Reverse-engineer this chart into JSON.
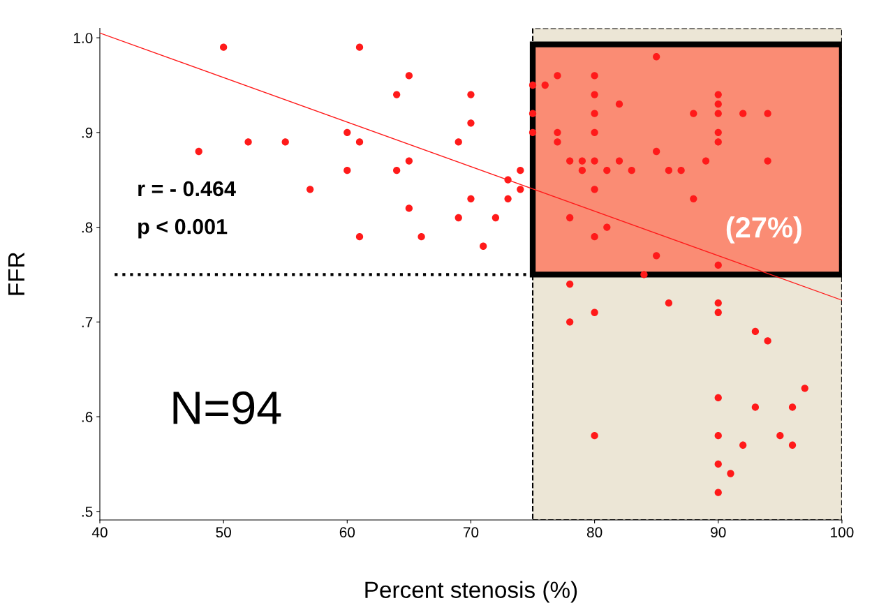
{
  "chart_data": {
    "type": "scatter",
    "xlabel": "Percent stenosis (%)",
    "ylabel": "FFR",
    "xlim": [
      40,
      100
    ],
    "xticks": [
      40,
      50,
      60,
      70,
      80,
      90,
      100
    ],
    "ylim": [
      0.491,
      1.01
    ],
    "yticks": [
      {
        "value": 0.5,
        "label": ".5"
      },
      {
        "value": 0.6,
        "label": ".6"
      },
      {
        "value": 0.7,
        "label": ".7"
      },
      {
        "value": 0.8,
        "label": ".8"
      },
      {
        "value": 0.9,
        "label": ".9"
      },
      {
        "value": 1.0,
        "label": "1.0"
      }
    ],
    "grid": false,
    "series": [
      {
        "marker": "circle",
        "color": "#ff1a1a",
        "x": [
          50,
          61,
          65,
          64,
          70,
          70,
          60,
          48,
          52,
          55,
          61,
          69,
          65,
          60,
          64,
          74,
          73,
          57,
          74,
          70,
          73,
          65,
          69,
          72,
          61,
          66,
          71,
          85,
          77,
          80,
          75,
          76,
          80,
          90,
          82,
          90,
          75,
          80,
          88,
          90,
          92,
          94,
          75,
          77,
          80,
          90,
          77,
          90,
          85,
          78,
          79,
          80,
          82,
          89,
          94,
          79,
          81,
          83,
          86,
          87,
          80,
          88,
          78,
          81,
          80,
          85,
          90,
          84,
          78,
          86,
          90,
          80,
          90,
          78,
          93,
          94,
          97,
          90,
          93,
          96,
          80,
          90,
          95,
          92,
          96,
          90,
          91,
          90
        ],
        "values": [
          0.99,
          0.99,
          0.96,
          0.94,
          0.94,
          0.91,
          0.9,
          0.88,
          0.89,
          0.89,
          0.89,
          0.89,
          0.87,
          0.86,
          0.86,
          0.86,
          0.85,
          0.84,
          0.84,
          0.83,
          0.83,
          0.82,
          0.81,
          0.81,
          0.79,
          0.79,
          0.78,
          0.98,
          0.96,
          0.96,
          0.95,
          0.95,
          0.94,
          0.94,
          0.93,
          0.93,
          0.92,
          0.92,
          0.92,
          0.92,
          0.92,
          0.92,
          0.9,
          0.9,
          0.9,
          0.9,
          0.89,
          0.89,
          0.88,
          0.87,
          0.87,
          0.87,
          0.87,
          0.87,
          0.87,
          0.86,
          0.86,
          0.86,
          0.86,
          0.86,
          0.84,
          0.83,
          0.81,
          0.8,
          0.79,
          0.77,
          0.76,
          0.75,
          0.74,
          0.72,
          0.72,
          0.71,
          0.71,
          0.7,
          0.69,
          0.68,
          0.63,
          0.62,
          0.61,
          0.61,
          0.58,
          0.58,
          0.58,
          0.57,
          0.57,
          0.55,
          0.54,
          0.52
        ]
      },
      {
        "type": "line",
        "color": "#ff1a1a",
        "x": [
          40,
          100
        ],
        "values": [
          1.005,
          0.723
        ]
      }
    ],
    "ref_lines": [
      {
        "axis": "y",
        "value": 0.75,
        "color": "#000000",
        "line_style": "dotted"
      }
    ],
    "bands": [
      {
        "axis": "x",
        "from": 75,
        "to": 100,
        "color": "#ece6d6"
      },
      {
        "axis": "y",
        "from": 0.75,
        "to": 0.993,
        "color": "#fa8c74"
      }
    ],
    "annotations": [
      {
        "text": "r = - 0.464"
      },
      {
        "text": "p < 0.001"
      },
      {
        "text": "N=94"
      },
      {
        "text": "(27%)"
      }
    ]
  }
}
